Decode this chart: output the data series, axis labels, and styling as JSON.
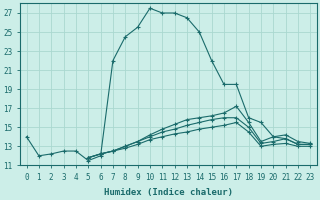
{
  "xlabel": "Humidex (Indice chaleur)",
  "ylabel": "",
  "bg_color": "#cceee8",
  "line_color": "#1a6b6b",
  "grid_color": "#aad8d0",
  "xlim": [
    -0.5,
    23.5
  ],
  "ylim": [
    11,
    28
  ],
  "yticks": [
    11,
    13,
    15,
    17,
    19,
    21,
    23,
    25,
    27
  ],
  "xticks": [
    0,
    1,
    2,
    3,
    4,
    5,
    6,
    7,
    8,
    9,
    10,
    11,
    12,
    13,
    14,
    15,
    16,
    17,
    18,
    19,
    20,
    21,
    22,
    23
  ],
  "curve1_x": [
    0,
    1,
    2,
    3,
    4,
    5,
    6,
    7,
    8,
    9,
    10,
    11,
    12,
    13,
    14,
    15,
    16,
    17,
    18,
    19,
    20,
    21,
    22,
    23
  ],
  "curve1_y": [
    14.0,
    12.0,
    12.2,
    12.5,
    12.5,
    11.5,
    12.0,
    22.0,
    24.5,
    25.5,
    27.5,
    27.0,
    27.0,
    26.5,
    25.0,
    22.0,
    19.5,
    19.5,
    16.0,
    15.5,
    14.0,
    13.8,
    13.2,
    13.2
  ],
  "curve2_x": [
    5,
    6,
    7,
    8,
    9,
    10,
    11,
    12,
    13,
    14,
    15,
    16,
    17,
    18,
    19,
    20,
    21,
    22,
    23
  ],
  "curve2_y": [
    11.8,
    12.2,
    12.5,
    13.0,
    13.5,
    14.2,
    14.8,
    15.3,
    15.8,
    16.0,
    16.2,
    16.5,
    17.2,
    15.5,
    13.5,
    14.0,
    14.2,
    13.5,
    13.3
  ],
  "curve3_x": [
    5,
    6,
    7,
    8,
    9,
    10,
    11,
    12,
    13,
    14,
    15,
    16,
    17,
    18,
    19,
    20,
    21,
    22,
    23
  ],
  "curve3_y": [
    11.8,
    12.2,
    12.5,
    13.0,
    13.5,
    14.0,
    14.5,
    14.8,
    15.2,
    15.5,
    15.8,
    16.0,
    16.0,
    15.0,
    13.3,
    13.5,
    13.8,
    13.2,
    13.2
  ],
  "curve4_x": [
    5,
    6,
    7,
    8,
    9,
    10,
    11,
    12,
    13,
    14,
    15,
    16,
    17,
    18,
    19,
    20,
    21,
    22,
    23
  ],
  "curve4_y": [
    11.8,
    12.2,
    12.5,
    12.8,
    13.2,
    13.7,
    14.0,
    14.3,
    14.5,
    14.8,
    15.0,
    15.2,
    15.5,
    14.5,
    13.0,
    13.2,
    13.3,
    13.0,
    13.0
  ]
}
